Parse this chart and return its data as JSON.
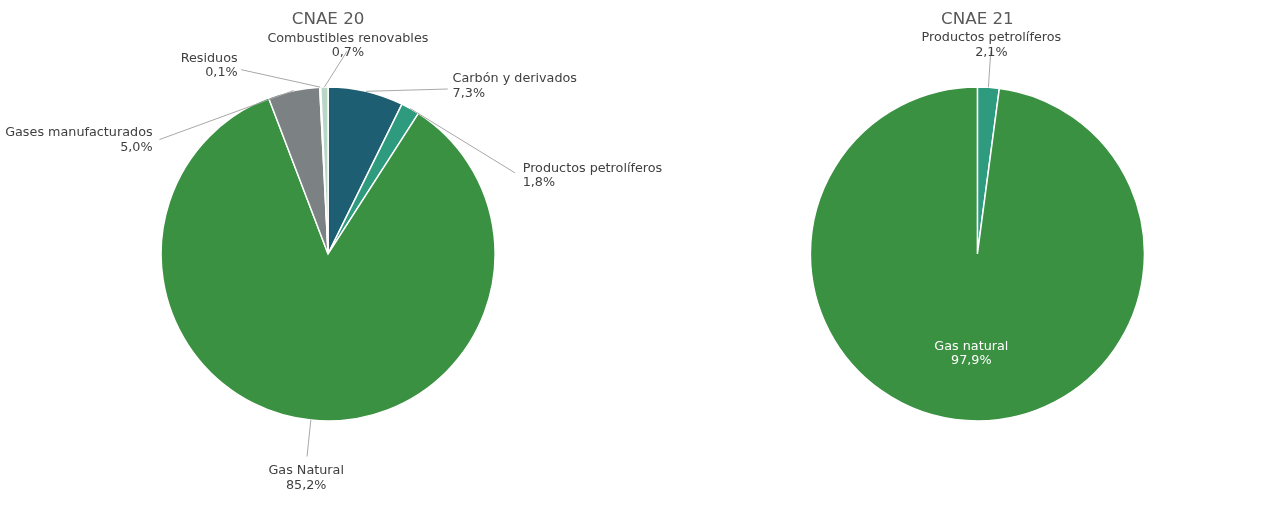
{
  "chart_data": [
    {
      "type": "pie",
      "title": "CNAE 20",
      "categories": [
        "Carbón y derivados",
        "Productos petrolíferos",
        "Gas Natural",
        "Gases manufacturados",
        "Residuos",
        "Combustibles renovables"
      ],
      "values": [
        7.3,
        1.8,
        85.2,
        5.0,
        0.1,
        0.7
      ],
      "value_labels": [
        "7,3%",
        "1,8%",
        "85,2%",
        "5,0%",
        "0,1%",
        "0,7%"
      ],
      "colors": [
        "#1e5e73",
        "#2e9a7e",
        "#3b9142",
        "#7c8184",
        "#c4c4c4",
        "#b7d6c6"
      ]
    },
    {
      "type": "pie",
      "title": "CNAE 21",
      "categories": [
        "Productos petrolíferos",
        "Gas natural"
      ],
      "values": [
        2.1,
        97.9
      ],
      "value_labels": [
        "2,1%",
        "97,9%"
      ],
      "colors": [
        "#2e9a7e",
        "#3b9142"
      ]
    }
  ]
}
